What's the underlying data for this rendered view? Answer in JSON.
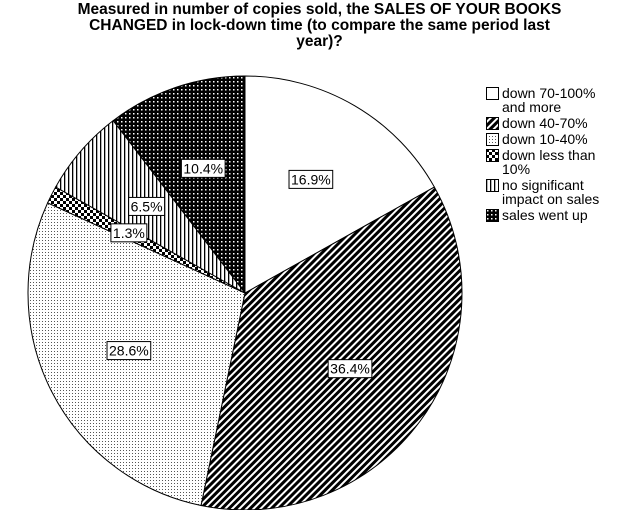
{
  "chart_data": {
    "type": "pie",
    "title": [
      "Measured in number of copies sold, the SALES OF YOUR BOOKS",
      "CHANGED in lock-down time (to compare the same period last",
      "year)?"
    ],
    "categories": [
      "down 70-100% and more",
      "down 40-70%",
      "down 10-40%",
      "down less than 10%",
      "no significant impact on sales",
      "sales went up"
    ],
    "values": [
      16.9,
      36.4,
      28.6,
      1.3,
      6.5,
      10.4
    ],
    "value_labels": [
      "16.9%",
      "36.4%",
      "28.6%",
      "1.3%",
      "6.5%",
      "10.4%"
    ],
    "fills": [
      "white",
      "diagonal",
      "dots",
      "checker",
      "vertical",
      "crosshatch"
    ]
  }
}
